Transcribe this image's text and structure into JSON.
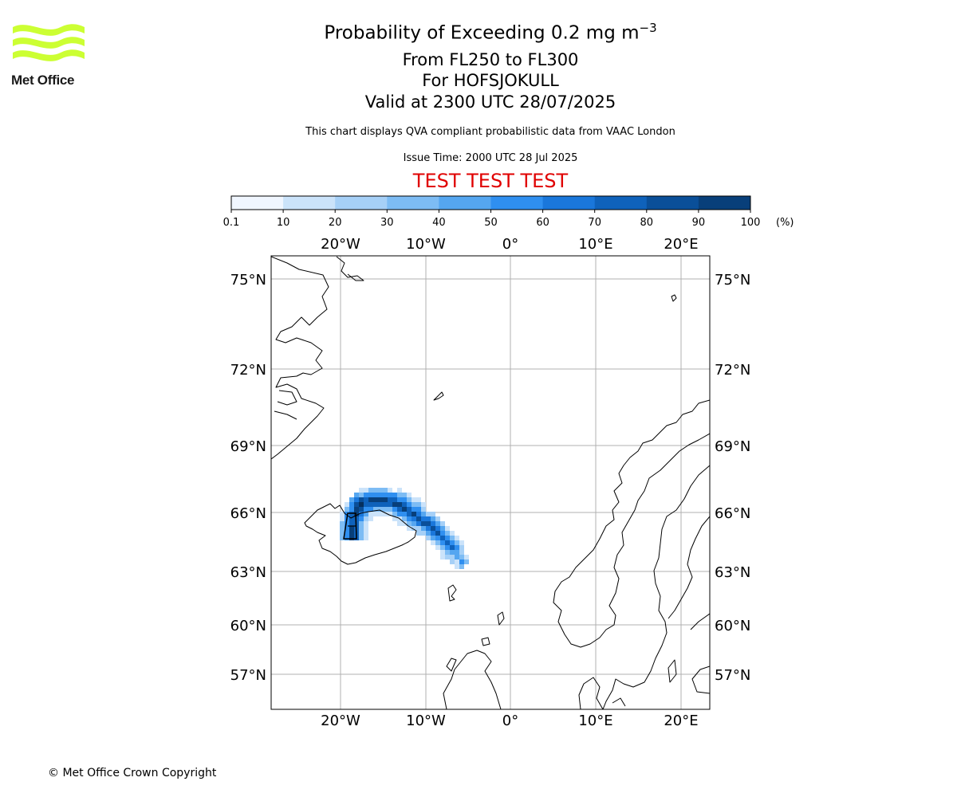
{
  "header": {
    "logo_text": "Met Office",
    "logo_color": "#ccff33",
    "title_main": "Probability of Exceeding 0.2 mg m",
    "title_exp": "−3",
    "subtitle_levels": "From FL250 to FL300",
    "subtitle_volcano": "For HOFSJOKULL",
    "subtitle_valid": "Valid at 2300 UTC 28/07/2025",
    "note": "This chart displays QVA compliant probabilistic data from VAAC London",
    "issue_time": "Issue Time: 2000 UTC 28 Jul 2025",
    "test_banner": "TEST TEST TEST",
    "test_color": "#e00000"
  },
  "colorbar": {
    "ticks": [
      "0.1",
      "10",
      "20",
      "30",
      "40",
      "50",
      "60",
      "70",
      "80",
      "90",
      "100"
    ],
    "unit": "(%)",
    "colors": [
      "#f0f6ff",
      "#cbe3fa",
      "#a6d0f7",
      "#7dbcf4",
      "#55a6f0",
      "#2f8ff0",
      "#1a77db",
      "#0f62bb",
      "#0a4f99",
      "#083f7a",
      "#06305e"
    ]
  },
  "map": {
    "lon_labels": [
      "20°W",
      "10°W",
      "0°",
      "10°E",
      "20°E"
    ],
    "lat_labels": [
      "75°N",
      "72°N",
      "69°N",
      "66°N",
      "63°N",
      "60°N",
      "57°N"
    ],
    "gridline_color": "#b0b0b0",
    "plume_source": "HOFSJOKULL"
  },
  "footer": {
    "copyright": "© Met Office Crown Copyright"
  }
}
